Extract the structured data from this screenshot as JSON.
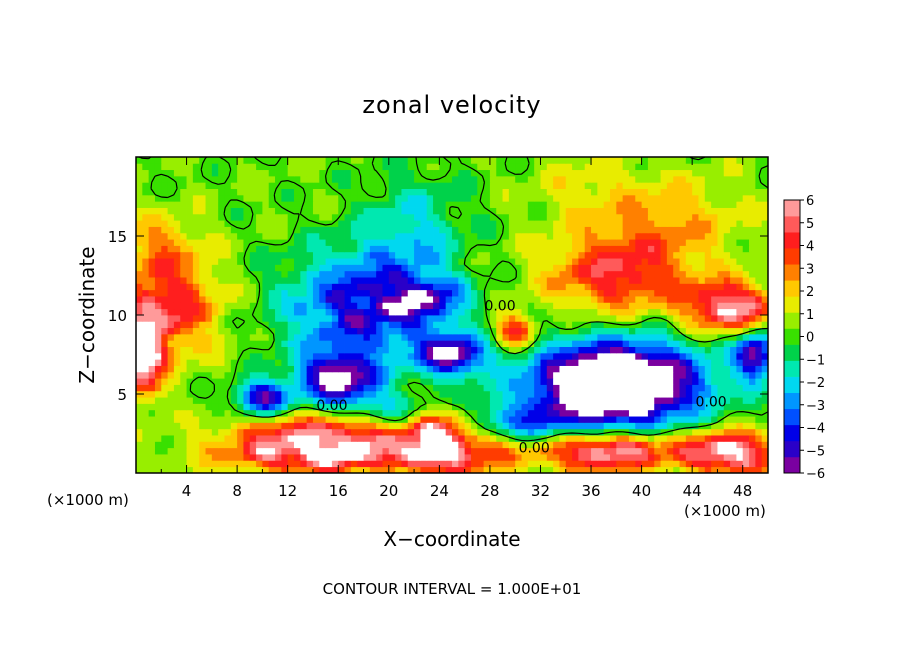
{
  "chart_data": {
    "type": "heatmap",
    "title": "zonal velocity",
    "xlabel": "X−coordinate",
    "ylabel": "Z−coordinate",
    "x_unit_left": "(×1000 m)",
    "x_unit_right": "(×1000 m)",
    "footer": "CONTOUR INTERVAL = 1.000E+01",
    "xlim": [
      0,
      50
    ],
    "ylim": [
      0,
      20
    ],
    "x_ticks": [
      4,
      8,
      12,
      16,
      20,
      24,
      28,
      32,
      36,
      40,
      44,
      48
    ],
    "x_tick_labels": [
      "4",
      "8",
      "12",
      "16",
      "20",
      "24",
      "28",
      "32",
      "36",
      "40",
      "44",
      "48"
    ],
    "y_ticks": [
      5,
      10,
      15
    ],
    "y_tick_labels": [
      "5",
      "10",
      "15"
    ],
    "colorbar": {
      "min": -6,
      "max": 6,
      "ticks": [
        6,
        5,
        4,
        3,
        2,
        1,
        0,
        -1,
        -2,
        -3,
        -4,
        -5,
        -6
      ],
      "tick_labels": [
        "6",
        "5",
        "4",
        "3",
        "2",
        "1",
        "0",
        "−1",
        "−2",
        "−3",
        "−4",
        "−5",
        "−6"
      ],
      "colors": [
        "#7a00a0",
        "#2a00c8",
        "#0000e8",
        "#0050ff",
        "#0096ff",
        "#00d8f0",
        "#00e8b0",
        "#00d24a",
        "#39e000",
        "#98ee00",
        "#e8ec00",
        "#ffc800",
        "#ff8000",
        "#ff3c00",
        "#ff1e1e",
        "#ff5a5a",
        "#ff9a9a"
      ],
      "overflow_color": "#ffffff"
    },
    "contour_labels": [
      {
        "text": "0.00",
        "x": 15.5,
        "y": 4.0
      },
      {
        "text": "0.00",
        "x": 28.8,
        "y": 10.3
      },
      {
        "text": "0.00",
        "x": 45.5,
        "y": 4.2
      },
      {
        "text": "0.00",
        "x": 31.5,
        "y": 1.3
      }
    ],
    "features": [
      {
        "x": 2.5,
        "y": 10.5,
        "sx": 4.0,
        "sy": 3.0,
        "v": 4.2,
        "ax": 0.8,
        "ay": 0.6
      },
      {
        "x": 0.5,
        "y": 7.5,
        "sx": 1.6,
        "sy": 2.5,
        "v": 6.5,
        "ax": 1.0,
        "ay": 0.4
      },
      {
        "x": 2.0,
        "y": 14.5,
        "sx": 3.0,
        "sy": 2.0,
        "v": 2.0,
        "ax": 0.0,
        "ay": 0.0
      },
      {
        "x": 15.0,
        "y": 1.3,
        "sx": 8.0,
        "sy": 1.2,
        "v": 6.5,
        "ax": 1.2,
        "ay": 0.8
      },
      {
        "x": 15.0,
        "y": 2.8,
        "sx": 7.0,
        "sy": 1.0,
        "v": 3.5,
        "ax": 0.0,
        "ay": 0.0
      },
      {
        "x": 24.0,
        "y": 2.0,
        "sx": 2.5,
        "sy": 2.0,
        "v": 6.8,
        "ax": 1.2,
        "ay": 0.4
      },
      {
        "x": 37.0,
        "y": 1.4,
        "sx": 5.5,
        "sy": 1.2,
        "v": 6.5,
        "ax": 0.8,
        "ay": 0.5
      },
      {
        "x": 47.0,
        "y": 1.3,
        "sx": 3.5,
        "sy": 1.3,
        "v": 6.5,
        "ax": 0.8,
        "ay": 0.5
      },
      {
        "x": 28.0,
        "y": 1.5,
        "sx": 2.5,
        "sy": 1.5,
        "v": 3.0,
        "ax": 0.0,
        "ay": 0.0
      },
      {
        "x": 18.0,
        "y": 10.5,
        "sx": 6.0,
        "sy": 3.5,
        "v": -5.0,
        "ax": 1.0,
        "ay": 0.8
      },
      {
        "x": 23.0,
        "y": 11.0,
        "sx": 3.0,
        "sy": 1.3,
        "v": -3.5,
        "ax": 0.7,
        "ay": 0.5
      },
      {
        "x": 16.0,
        "y": 6.0,
        "sx": 3.0,
        "sy": 1.5,
        "v": -6.5,
        "ax": 0.0,
        "ay": 0.0
      },
      {
        "x": 10.0,
        "y": 4.8,
        "sx": 2.0,
        "sy": 1.0,
        "v": -6.0,
        "ax": 0.0,
        "ay": 0.0
      },
      {
        "x": 25.0,
        "y": 7.5,
        "sx": 2.5,
        "sy": 1.3,
        "v": -6.2,
        "ax": 0.0,
        "ay": 0.0
      },
      {
        "x": 38.0,
        "y": 5.5,
        "sx": 5.5,
        "sy": 2.2,
        "v": -7.5,
        "ax": 1.0,
        "ay": 0.4
      },
      {
        "x": 38.0,
        "y": 6.0,
        "sx": 8.0,
        "sy": 3.0,
        "v": -4.0,
        "ax": 0.0,
        "ay": 0.0
      },
      {
        "x": 49.0,
        "y": 7.5,
        "sx": 1.5,
        "sy": 1.5,
        "v": -6.0,
        "ax": 0.0,
        "ay": 0.0
      },
      {
        "x": 20.0,
        "y": 4.0,
        "sx": 4.0,
        "sy": 1.2,
        "v": -2.0,
        "ax": 0.0,
        "ay": 0.0
      },
      {
        "x": 30.0,
        "y": 3.0,
        "sx": 6.0,
        "sy": 1.5,
        "v": -3.0,
        "ax": 0.0,
        "ay": 0.0
      },
      {
        "x": 22.0,
        "y": 15.5,
        "sx": 4.0,
        "sy": 3.5,
        "v": -2.0,
        "ax": 0.8,
        "ay": 0.6
      },
      {
        "x": 38.0,
        "y": 12.5,
        "sx": 5.5,
        "sy": 2.5,
        "v": 4.0,
        "ax": 0.7,
        "ay": 0.5
      },
      {
        "x": 42.0,
        "y": 16.0,
        "sx": 6.0,
        "sy": 3.0,
        "v": 2.0,
        "ax": 0.0,
        "ay": 0.0
      },
      {
        "x": 30.0,
        "y": 9.0,
        "sx": 1.5,
        "sy": 1.0,
        "v": 5.0,
        "ax": 0.0,
        "ay": 0.0
      },
      {
        "x": 47.0,
        "y": 10.5,
        "sx": 3.5,
        "sy": 1.5,
        "v": 6.0,
        "ax": 0.8,
        "ay": 0.5
      },
      {
        "x": 35.0,
        "y": 18.0,
        "sx": 4.0,
        "sy": 2.0,
        "v": 1.0,
        "ax": 0.0,
        "ay": 0.0
      }
    ],
    "base_value": 0.3
  }
}
